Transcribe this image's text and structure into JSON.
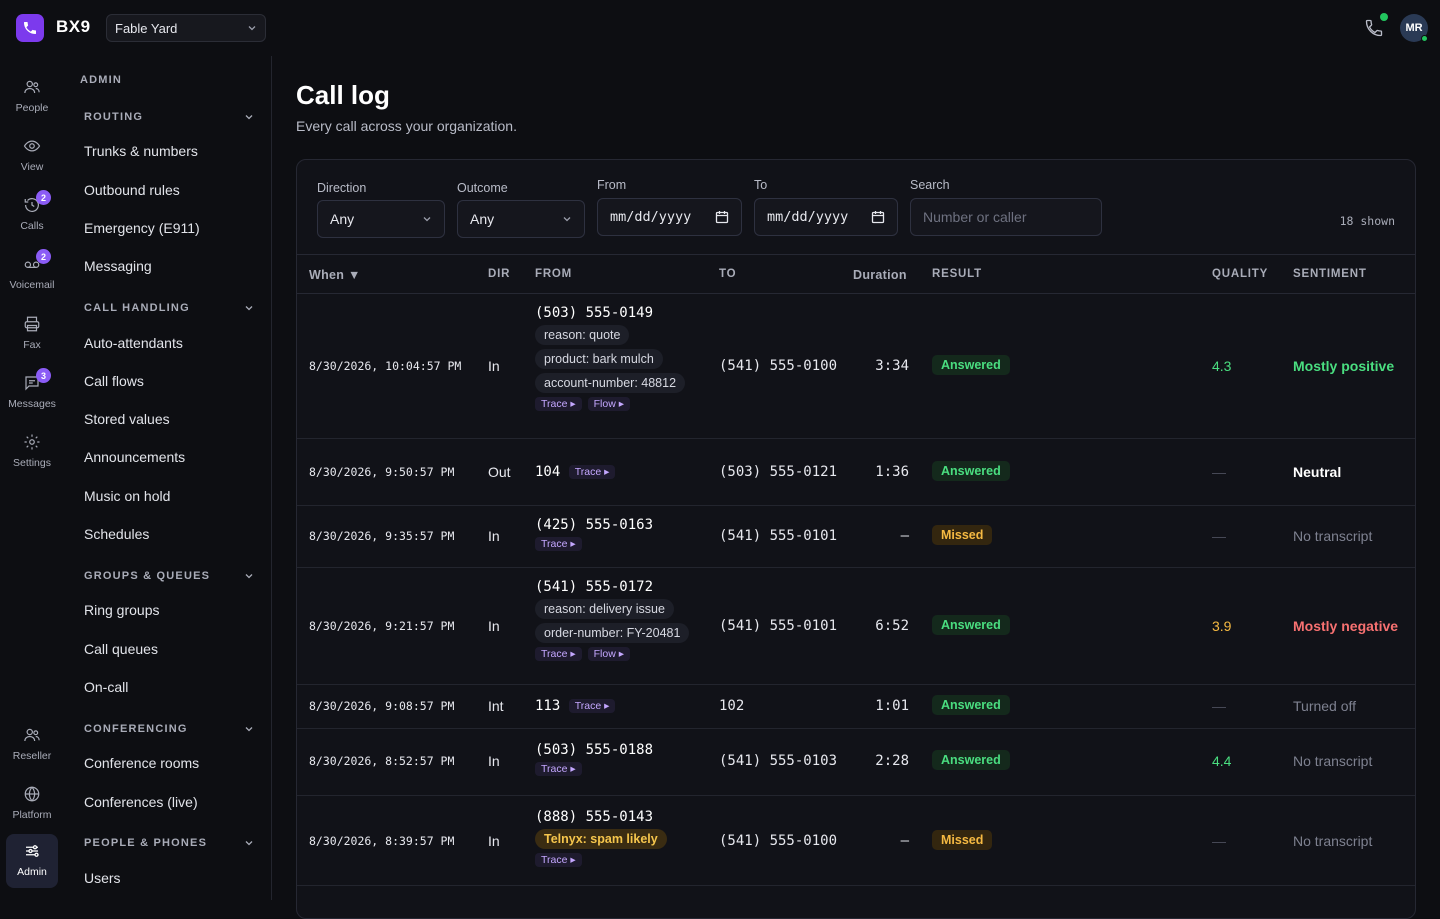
{
  "app": {
    "brand": "BX9",
    "org": "Fable Yard",
    "user_initials": "MR"
  },
  "rail": [
    {
      "label": "People",
      "icon": "people-icon",
      "badge": ""
    },
    {
      "label": "View",
      "icon": "eye-icon",
      "badge": ""
    },
    {
      "label": "Calls",
      "icon": "history-icon",
      "badge": "2"
    },
    {
      "label": "Voicemail",
      "icon": "voicemail-icon",
      "badge": "2"
    },
    {
      "label": "Fax",
      "icon": "printer-icon",
      "badge": ""
    },
    {
      "label": "Messages",
      "icon": "message-icon",
      "badge": "3"
    },
    {
      "label": "Settings",
      "icon": "gear-icon",
      "badge": ""
    },
    {
      "label": "Reseller",
      "icon": "people-icon",
      "badge": ""
    },
    {
      "label": "Platform",
      "icon": "globe-icon",
      "badge": ""
    },
    {
      "label": "Admin",
      "icon": "sliders-icon",
      "badge": ""
    }
  ],
  "sidebar": {
    "heading": "ADMIN",
    "sections": [
      {
        "title": "ROUTING",
        "items": [
          "Trunks & numbers",
          "Outbound rules",
          "Emergency (E911)",
          "Messaging"
        ]
      },
      {
        "title": "CALL HANDLING",
        "items": [
          "Auto-attendants",
          "Call flows",
          "Stored values",
          "Announcements",
          "Music on hold",
          "Schedules"
        ]
      },
      {
        "title": "GROUPS & QUEUES",
        "items": [
          "Ring groups",
          "Call queues",
          "On-call"
        ]
      },
      {
        "title": "CONFERENCING",
        "items": [
          "Conference rooms",
          "Conferences (live)"
        ]
      },
      {
        "title": "PEOPLE & PHONES",
        "items": [
          "Users"
        ]
      }
    ]
  },
  "page": {
    "title": "Call log",
    "subtitle": "Every call across your organization."
  },
  "filters": {
    "direction_label": "Direction",
    "direction_value": "Any",
    "outcome_label": "Outcome",
    "outcome_value": "Any",
    "from_label": "From",
    "from_value": "mm/dd/yyyy",
    "to_label": "To",
    "to_value": "mm/dd/yyyy",
    "search_label": "Search",
    "search_placeholder": "Number or caller",
    "shown": "18 shown"
  },
  "table": {
    "headers": {
      "when": "When ▼",
      "dir": "DIR",
      "from": "FROM",
      "to": "TO",
      "duration": "Duration",
      "result": "RESULT",
      "quality": "QUALITY",
      "sentiment": "SENTIMENT"
    },
    "trace_label": "Trace ▸",
    "flow_label": "Flow ▸",
    "rows": [
      {
        "when": "8/30/2026, 10:04:57 PM",
        "dir": "In",
        "from": "(503) 555-0149",
        "chips": [
          "reason: quote",
          "product: bark mulch",
          "account-number: 48812"
        ],
        "to": "(541) 555-0100",
        "duration": "3:34",
        "result": "Answered",
        "quality": "4.3",
        "sentiment": "Mostly positive"
      },
      {
        "when": "8/30/2026, 9:50:57 PM",
        "dir": "Out",
        "from": "104",
        "chips": [],
        "to": "(503) 555-0121",
        "duration": "1:36",
        "result": "Answered",
        "quality": "—",
        "sentiment": "Neutral"
      },
      {
        "when": "8/30/2026, 9:35:57 PM",
        "dir": "In",
        "from": "(425) 555-0163",
        "chips": [],
        "to": "(541) 555-0101",
        "duration": "—",
        "result": "Missed",
        "quality": "—",
        "sentiment": "No transcript"
      },
      {
        "when": "8/30/2026, 9:21:57 PM",
        "dir": "In",
        "from": "(541) 555-0172",
        "chips": [
          "reason: delivery issue",
          "order-number: FY-20481"
        ],
        "to": "(541) 555-0101",
        "duration": "6:52",
        "result": "Answered",
        "quality": "3.9",
        "sentiment": "Mostly negative"
      },
      {
        "when": "8/30/2026, 9:08:57 PM",
        "dir": "Int",
        "from": "113",
        "chips": [],
        "to": "102",
        "duration": "1:01",
        "result": "Answered",
        "quality": "—",
        "sentiment": "Turned off"
      },
      {
        "when": "8/30/2026, 8:52:57 PM",
        "dir": "In",
        "from": "(503) 555-0188",
        "chips": [],
        "to": "(541) 555-0103",
        "duration": "2:28",
        "result": "Answered",
        "quality": "4.4",
        "sentiment": "No transcript"
      },
      {
        "when": "8/30/2026, 8:39:57 PM",
        "dir": "In",
        "from": "(888) 555-0143",
        "chips": [
          "Telnyx: spam likely"
        ],
        "to": "(541) 555-0100",
        "duration": "—",
        "result": "Missed",
        "quality": "—",
        "sentiment": "No transcript"
      }
    ]
  }
}
